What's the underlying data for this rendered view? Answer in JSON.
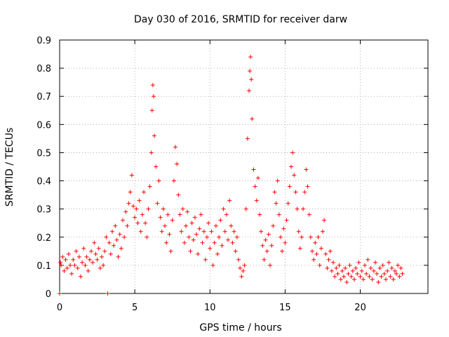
{
  "chart_data": {
    "type": "scatter",
    "title": "Day 030 of 2016, SRMTID for receiver darw",
    "xlabel": "GPS time / hours",
    "ylabel": "SRMTID / TECUs",
    "xlim": [
      0,
      24.5
    ],
    "ylim": [
      0,
      0.9
    ],
    "x_ticks": [
      0,
      5,
      10,
      15,
      20
    ],
    "x_tick_labels": [
      "0",
      "5",
      "10",
      "15",
      "20"
    ],
    "y_ticks": [
      0,
      0.1,
      0.2,
      0.3,
      0.4,
      0.5,
      0.6,
      0.7,
      0.8,
      0.9
    ],
    "y_tick_labels": [
      "0",
      "0.1",
      "0.2",
      "0.3",
      "0.4",
      "0.5",
      "0.6",
      "0.7",
      "0.8",
      "0.9"
    ],
    "grid": true,
    "marker": "+",
    "colors": {
      "series": "#ff0000",
      "grid": "#a0a0a0",
      "axes": "#000000"
    },
    "series": [
      {
        "name": "SRMTID",
        "points": [
          [
            0.0,
            0.0
          ],
          [
            0.05,
            0.11
          ],
          [
            0.1,
            0.1
          ],
          [
            0.2,
            0.13
          ],
          [
            0.3,
            0.08
          ],
          [
            0.4,
            0.12
          ],
          [
            0.5,
            0.09
          ],
          [
            0.6,
            0.14
          ],
          [
            0.7,
            0.1
          ],
          [
            0.8,
            0.07
          ],
          [
            0.9,
            0.12
          ],
          [
            1.0,
            0.1
          ],
          [
            1.1,
            0.15
          ],
          [
            1.2,
            0.09
          ],
          [
            1.3,
            0.13
          ],
          [
            1.4,
            0.06
          ],
          [
            1.5,
            0.11
          ],
          [
            1.6,
            0.16
          ],
          [
            1.7,
            0.1
          ],
          [
            1.8,
            0.13
          ],
          [
            1.9,
            0.08
          ],
          [
            2.0,
            0.12
          ],
          [
            2.1,
            0.15
          ],
          [
            2.2,
            0.11
          ],
          [
            2.3,
            0.18
          ],
          [
            2.4,
            0.14
          ],
          [
            2.5,
            0.12
          ],
          [
            2.6,
            0.16
          ],
          [
            2.7,
            0.09
          ],
          [
            2.8,
            0.13
          ],
          [
            2.9,
            0.1
          ],
          [
            3.0,
            0.15
          ],
          [
            3.1,
            0.2
          ],
          [
            3.2,
            0.0
          ],
          [
            3.3,
            0.18
          ],
          [
            3.4,
            0.14
          ],
          [
            3.5,
            0.22
          ],
          [
            3.6,
            0.17
          ],
          [
            3.7,
            0.24
          ],
          [
            3.8,
            0.19
          ],
          [
            3.9,
            0.13
          ],
          [
            4.0,
            0.21
          ],
          [
            4.1,
            0.16
          ],
          [
            4.2,
            0.26
          ],
          [
            4.3,
            0.2
          ],
          [
            4.4,
            0.29
          ],
          [
            4.5,
            0.24
          ],
          [
            4.6,
            0.32
          ],
          [
            4.7,
            0.36
          ],
          [
            4.8,
            0.42
          ],
          [
            4.9,
            0.31
          ],
          [
            5.0,
            0.27
          ],
          [
            5.1,
            0.3
          ],
          [
            5.2,
            0.25
          ],
          [
            5.3,
            0.33
          ],
          [
            5.4,
            0.22
          ],
          [
            5.5,
            0.28
          ],
          [
            5.6,
            0.36
          ],
          [
            5.7,
            0.25
          ],
          [
            5.8,
            0.2
          ],
          [
            5.9,
            0.3
          ],
          [
            6.0,
            0.38
          ],
          [
            6.1,
            0.5
          ],
          [
            6.15,
            0.65
          ],
          [
            6.2,
            0.74
          ],
          [
            6.25,
            0.7
          ],
          [
            6.3,
            0.56
          ],
          [
            6.4,
            0.45
          ],
          [
            6.5,
            0.32
          ],
          [
            6.6,
            0.4
          ],
          [
            6.7,
            0.27
          ],
          [
            6.8,
            0.22
          ],
          [
            6.9,
            0.3
          ],
          [
            7.0,
            0.24
          ],
          [
            7.1,
            0.18
          ],
          [
            7.2,
            0.28
          ],
          [
            7.3,
            0.21
          ],
          [
            7.4,
            0.15
          ],
          [
            7.5,
            0.26
          ],
          [
            7.6,
            0.4
          ],
          [
            7.7,
            0.52
          ],
          [
            7.8,
            0.46
          ],
          [
            7.9,
            0.35
          ],
          [
            8.0,
            0.28
          ],
          [
            8.1,
            0.22
          ],
          [
            8.2,
            0.3
          ],
          [
            8.3,
            0.18
          ],
          [
            8.4,
            0.24
          ],
          [
            8.5,
            0.29
          ],
          [
            8.6,
            0.2
          ],
          [
            8.7,
            0.15
          ],
          [
            8.8,
            0.25
          ],
          [
            8.9,
            0.19
          ],
          [
            9.0,
            0.27
          ],
          [
            9.1,
            0.21
          ],
          [
            9.2,
            0.14
          ],
          [
            9.3,
            0.23
          ],
          [
            9.4,
            0.28
          ],
          [
            9.5,
            0.18
          ],
          [
            9.6,
            0.22
          ],
          [
            9.7,
            0.12
          ],
          [
            9.8,
            0.2
          ],
          [
            9.9,
            0.25
          ],
          [
            10.0,
            0.16
          ],
          [
            10.1,
            0.22
          ],
          [
            10.2,
            0.1
          ],
          [
            10.3,
            0.18
          ],
          [
            10.4,
            0.24
          ],
          [
            10.5,
            0.14
          ],
          [
            10.6,
            0.2
          ],
          [
            10.7,
            0.26
          ],
          [
            10.8,
            0.17
          ],
          [
            10.9,
            0.3
          ],
          [
            11.0,
            0.22
          ],
          [
            11.1,
            0.28
          ],
          [
            11.2,
            0.19
          ],
          [
            11.3,
            0.33
          ],
          [
            11.4,
            0.24
          ],
          [
            11.5,
            0.18
          ],
          [
            11.6,
            0.22
          ],
          [
            11.7,
            0.15
          ],
          [
            11.8,
            0.2
          ],
          [
            11.9,
            0.12
          ],
          [
            12.0,
            0.09
          ],
          [
            12.1,
            0.06
          ],
          [
            12.2,
            0.08
          ],
          [
            12.3,
            0.1
          ],
          [
            12.4,
            0.3
          ],
          [
            12.5,
            0.55
          ],
          [
            12.6,
            0.72
          ],
          [
            12.65,
            0.79
          ],
          [
            12.7,
            0.84
          ],
          [
            12.75,
            0.76
          ],
          [
            12.8,
            0.62
          ],
          [
            12.9,
            0.44
          ],
          [
            13.0,
            0.38
          ],
          [
            13.1,
            0.33
          ],
          [
            13.2,
            0.41
          ],
          [
            13.3,
            0.28
          ],
          [
            13.4,
            0.22
          ],
          [
            13.5,
            0.17
          ],
          [
            13.6,
            0.12
          ],
          [
            13.7,
            0.19
          ],
          [
            13.8,
            0.15
          ],
          [
            13.9,
            0.21
          ],
          [
            14.0,
            0.1
          ],
          [
            14.1,
            0.17
          ],
          [
            14.2,
            0.24
          ],
          [
            14.3,
            0.36
          ],
          [
            14.4,
            0.32
          ],
          [
            14.5,
            0.4
          ],
          [
            14.6,
            0.28
          ],
          [
            14.7,
            0.2
          ],
          [
            14.8,
            0.15
          ],
          [
            14.9,
            0.23
          ],
          [
            15.0,
            0.18
          ],
          [
            15.1,
            0.26
          ],
          [
            15.2,
            0.32
          ],
          [
            15.3,
            0.38
          ],
          [
            15.4,
            0.45
          ],
          [
            15.5,
            0.5
          ],
          [
            15.6,
            0.42
          ],
          [
            15.7,
            0.36
          ],
          [
            15.8,
            0.3
          ],
          [
            15.9,
            0.22
          ],
          [
            16.0,
            0.16
          ],
          [
            16.1,
            0.2
          ],
          [
            16.2,
            0.3
          ],
          [
            16.3,
            0.36
          ],
          [
            16.4,
            0.44
          ],
          [
            16.5,
            0.38
          ],
          [
            16.6,
            0.28
          ],
          [
            16.7,
            0.2
          ],
          [
            16.8,
            0.15
          ],
          [
            16.9,
            0.12
          ],
          [
            17.0,
            0.18
          ],
          [
            17.1,
            0.14
          ],
          [
            17.2,
            0.2
          ],
          [
            17.3,
            0.1
          ],
          [
            17.4,
            0.16
          ],
          [
            17.5,
            0.22
          ],
          [
            17.6,
            0.26
          ],
          [
            17.7,
            0.14
          ],
          [
            17.8,
            0.09
          ],
          [
            17.9,
            0.12
          ],
          [
            18.0,
            0.15
          ],
          [
            18.1,
            0.08
          ],
          [
            18.2,
            0.11
          ],
          [
            18.3,
            0.06
          ],
          [
            18.4,
            0.09
          ],
          [
            18.5,
            0.07
          ],
          [
            18.6,
            0.1
          ],
          [
            18.7,
            0.05
          ],
          [
            18.8,
            0.08
          ],
          [
            18.9,
            0.06
          ],
          [
            19.0,
            0.09
          ],
          [
            19.1,
            0.04
          ],
          [
            19.2,
            0.07
          ],
          [
            19.3,
            0.1
          ],
          [
            19.4,
            0.06
          ],
          [
            19.5,
            0.08
          ],
          [
            19.6,
            0.05
          ],
          [
            19.7,
            0.09
          ],
          [
            19.8,
            0.07
          ],
          [
            19.9,
            0.11
          ],
          [
            20.0,
            0.06
          ],
          [
            20.1,
            0.08
          ],
          [
            20.2,
            0.05
          ],
          [
            20.3,
            0.1
          ],
          [
            20.4,
            0.07
          ],
          [
            20.5,
            0.12
          ],
          [
            20.6,
            0.06
          ],
          [
            20.7,
            0.09
          ],
          [
            20.8,
            0.05
          ],
          [
            20.9,
            0.08
          ],
          [
            21.0,
            0.11
          ],
          [
            21.1,
            0.07
          ],
          [
            21.2,
            0.04
          ],
          [
            21.3,
            0.09
          ],
          [
            21.4,
            0.06
          ],
          [
            21.5,
            0.1
          ],
          [
            21.6,
            0.07
          ],
          [
            21.7,
            0.05
          ],
          [
            21.8,
            0.08
          ],
          [
            21.9,
            0.11
          ],
          [
            22.0,
            0.06
          ],
          [
            22.1,
            0.09
          ],
          [
            22.2,
            0.05
          ],
          [
            22.3,
            0.08
          ],
          [
            22.4,
            0.07
          ],
          [
            22.5,
            0.1
          ],
          [
            22.6,
            0.06
          ],
          [
            22.7,
            0.09
          ],
          [
            22.8,
            0.07
          ]
        ]
      }
    ]
  }
}
